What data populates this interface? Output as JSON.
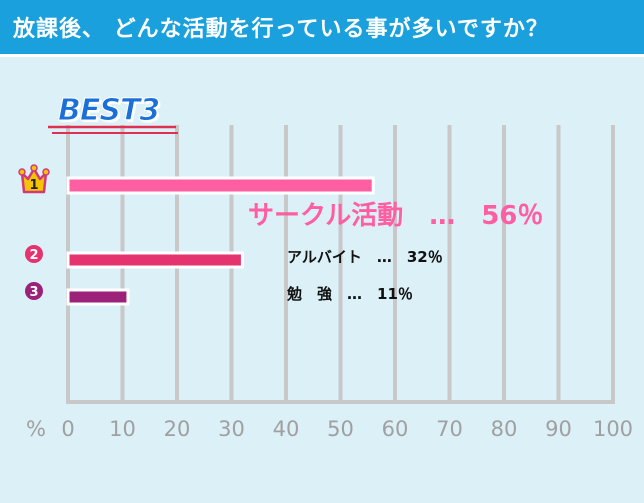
{
  "header": {
    "question": "放課後、 どんな活動を行っている事が多いですか？"
  },
  "badge": {
    "text": "BEST3"
  },
  "chart_data": {
    "type": "bar",
    "orientation": "horizontal",
    "categories": [
      "サークル活動",
      "アルバイト",
      "勉　強"
    ],
    "values": [
      56,
      32,
      11
    ],
    "labels": [
      "サークル活動　…　56％",
      "アルバイト　…　32％",
      "勉　強　…　11％"
    ],
    "ranks": [
      "1",
      "2",
      "3"
    ],
    "colors": [
      "#ff5fa2",
      "#e5336f",
      "#9b2278"
    ],
    "label_colors": [
      "#ff5fa2",
      "#111111",
      "#111111"
    ],
    "xlim": [
      0,
      100
    ],
    "xticks": [
      0,
      10,
      20,
      30,
      40,
      50,
      60,
      70,
      80,
      90,
      100
    ],
    "unit_label": "%",
    "grid": true,
    "grid_color": "#c8c8c8",
    "tick_color": "#a0a0a0"
  }
}
